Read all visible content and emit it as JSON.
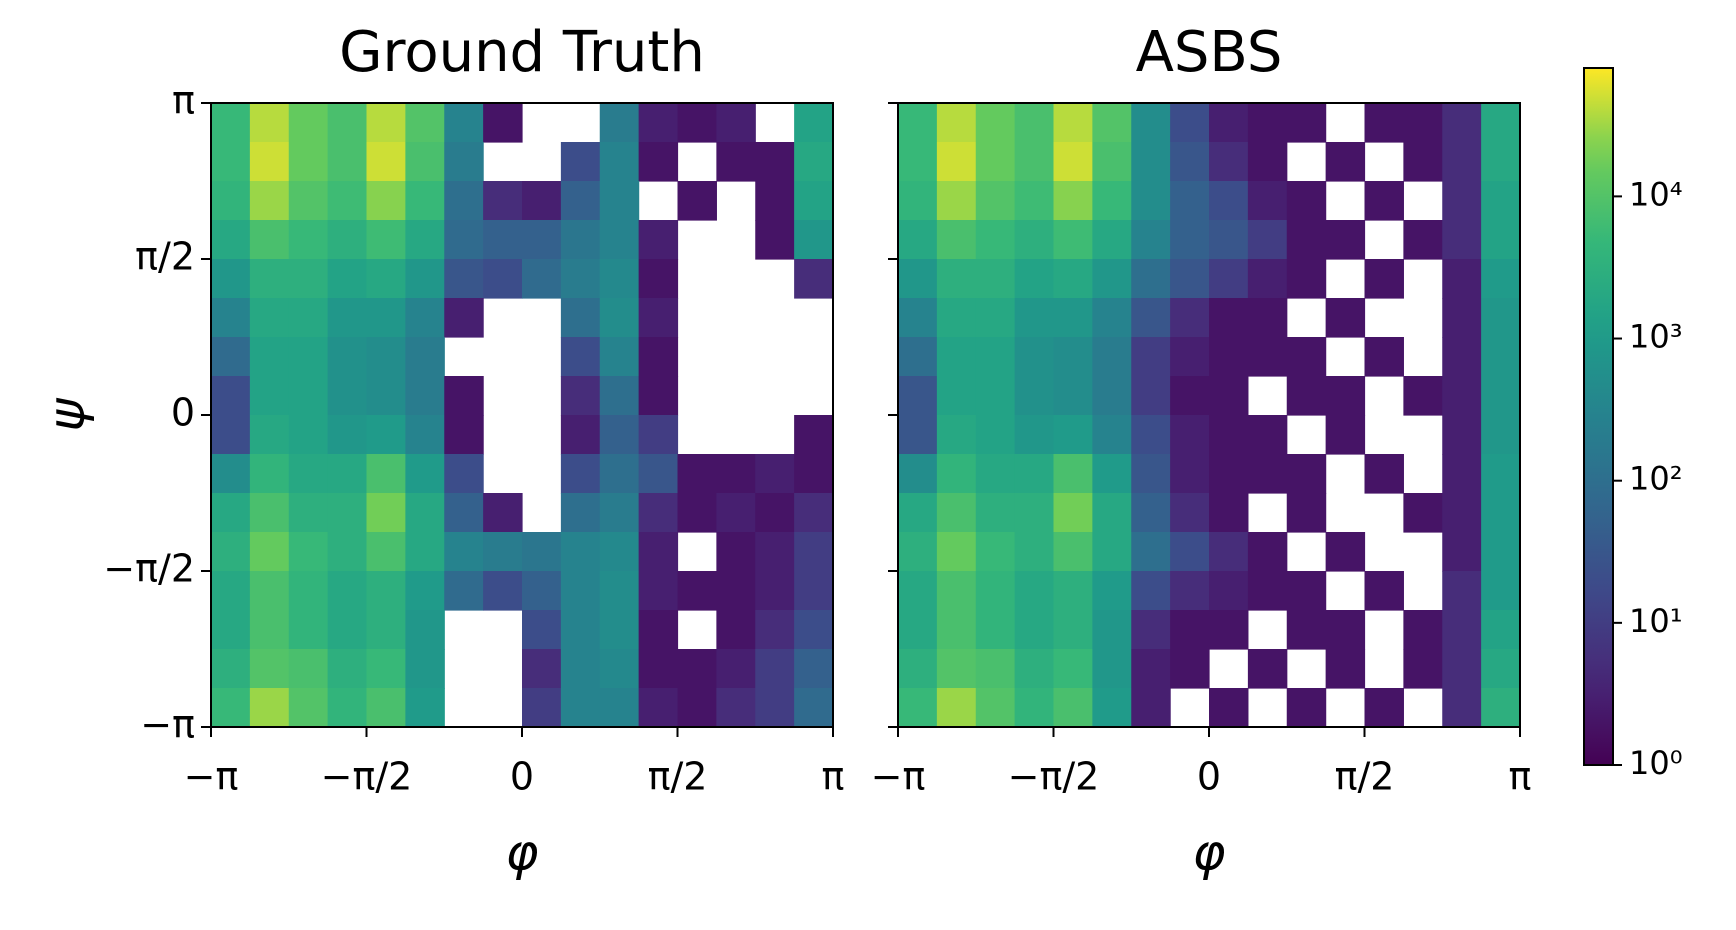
{
  "chart_data": [
    {
      "type": "heatmap",
      "title": "Ground Truth",
      "xlabel": "φ",
      "ylabel": "ψ",
      "xlim": [
        -3.14159,
        3.14159
      ],
      "ylim": [
        -3.14159,
        3.14159
      ],
      "xticks": [
        {
          "value": -3.14159,
          "label": "−π"
        },
        {
          "value": -1.5708,
          "label": "−π/2"
        },
        0,
        {
          "value": 1.5708,
          "label": "π/2"
        },
        {
          "value": 3.14159,
          "label": "π"
        }
      ],
      "yticks": [
        {
          "value": -3.14159,
          "label": "−π"
        },
        {
          "value": -1.5708,
          "label": "−π/2"
        },
        0,
        {
          "value": 1.5708,
          "label": "π/2"
        },
        {
          "value": 3.14159,
          "label": "π"
        }
      ],
      "z": [
        [
          5000,
          40000,
          15000,
          8000,
          40000,
          10000,
          300,
          2,
          null,
          null,
          200,
          3,
          2,
          3,
          null,
          1500
        ],
        [
          5000,
          50000,
          15000,
          8000,
          50000,
          8000,
          200,
          null,
          null,
          20,
          300,
          2,
          null,
          2,
          2,
          2000
        ],
        [
          4000,
          30000,
          10000,
          6000,
          25000,
          5000,
          100,
          5,
          3,
          50,
          300,
          null,
          2,
          null,
          2,
          1500
        ],
        [
          2000,
          8000,
          5000,
          3000,
          6000,
          2000,
          80,
          50,
          50,
          150,
          300,
          3,
          null,
          null,
          2,
          800
        ],
        [
          800,
          3000,
          3000,
          1500,
          2000,
          800,
          30,
          20,
          80,
          200,
          400,
          2,
          null,
          null,
          null,
          5
        ],
        [
          300,
          2000,
          2000,
          800,
          800,
          300,
          3,
          null,
          null,
          100,
          500,
          3,
          null,
          null,
          null,
          null
        ],
        [
          80,
          1500,
          1500,
          600,
          500,
          200,
          null,
          null,
          null,
          20,
          300,
          2,
          null,
          null,
          null,
          null
        ],
        [
          20,
          1500,
          1500,
          600,
          500,
          200,
          2,
          null,
          null,
          5,
          100,
          2,
          null,
          null,
          null,
          null
        ],
        [
          20,
          2000,
          1500,
          800,
          1000,
          300,
          2,
          null,
          null,
          3,
          50,
          10,
          null,
          null,
          null,
          2
        ],
        [
          500,
          4000,
          2000,
          2000,
          8000,
          1000,
          20,
          null,
          null,
          20,
          100,
          30,
          2,
          2,
          3,
          2
        ],
        [
          2000,
          8000,
          3000,
          3000,
          20000,
          2000,
          50,
          3,
          null,
          100,
          200,
          5,
          2,
          3,
          2,
          5
        ],
        [
          3000,
          15000,
          5000,
          3000,
          8000,
          2000,
          300,
          200,
          150,
          300,
          400,
          3,
          null,
          2,
          3,
          10
        ],
        [
          2000,
          8000,
          4000,
          2000,
          3000,
          1000,
          80,
          20,
          50,
          300,
          500,
          3,
          2,
          2,
          3,
          10
        ],
        [
          2000,
          8000,
          4000,
          2000,
          3000,
          800,
          null,
          null,
          20,
          300,
          500,
          2,
          null,
          2,
          5,
          20
        ],
        [
          3000,
          10000,
          8000,
          3000,
          5000,
          800,
          null,
          null,
          5,
          300,
          400,
          2,
          2,
          3,
          10,
          50
        ],
        [
          5000,
          30000,
          10000,
          4000,
          8000,
          1000,
          null,
          null,
          10,
          300,
          300,
          3,
          2,
          5,
          10,
          80
        ]
      ]
    },
    {
      "type": "heatmap",
      "title": "ASBS",
      "xlabel": "φ",
      "xlim": [
        -3.14159,
        3.14159
      ],
      "ylim": [
        -3.14159,
        3.14159
      ],
      "xticks": [
        {
          "value": -3.14159,
          "label": "−π"
        },
        {
          "value": -1.5708,
          "label": "−π/2"
        },
        0,
        {
          "value": 1.5708,
          "label": "π/2"
        },
        {
          "value": 3.14159,
          "label": "π"
        }
      ],
      "ytick_marks": [
        -3.14159,
        -1.5708,
        0,
        1.5708,
        3.14159
      ],
      "z": [
        [
          5000,
          40000,
          15000,
          8000,
          40000,
          10000,
          500,
          20,
          3,
          2,
          2,
          null,
          2,
          2,
          5,
          2000
        ],
        [
          5000,
          50000,
          15000,
          8000,
          50000,
          8000,
          500,
          30,
          5,
          2,
          null,
          2,
          null,
          2,
          5,
          2000
        ],
        [
          4000,
          30000,
          10000,
          6000,
          25000,
          5000,
          500,
          50,
          20,
          3,
          2,
          null,
          2,
          null,
          5,
          1500
        ],
        [
          2000,
          8000,
          5000,
          3000,
          6000,
          2000,
          300,
          50,
          30,
          10,
          2,
          2,
          null,
          2,
          5,
          1500
        ],
        [
          800,
          3000,
          3000,
          1500,
          2000,
          800,
          100,
          30,
          10,
          3,
          2,
          null,
          2,
          null,
          3,
          1000
        ],
        [
          300,
          2000,
          2000,
          800,
          800,
          300,
          30,
          5,
          2,
          2,
          null,
          2,
          null,
          null,
          3,
          800
        ],
        [
          100,
          1500,
          1500,
          600,
          500,
          200,
          10,
          3,
          2,
          2,
          2,
          null,
          2,
          null,
          3,
          800
        ],
        [
          30,
          1500,
          1500,
          600,
          500,
          200,
          10,
          2,
          2,
          null,
          2,
          2,
          null,
          2,
          3,
          800
        ],
        [
          30,
          2000,
          1500,
          800,
          1000,
          300,
          20,
          3,
          2,
          2,
          null,
          2,
          null,
          null,
          3,
          800
        ],
        [
          500,
          4000,
          2000,
          2000,
          8000,
          1000,
          30,
          3,
          2,
          2,
          2,
          null,
          2,
          null,
          3,
          1000
        ],
        [
          2000,
          8000,
          3000,
          3000,
          20000,
          2000,
          50,
          5,
          2,
          null,
          2,
          null,
          null,
          2,
          3,
          1000
        ],
        [
          3000,
          15000,
          5000,
          3000,
          8000,
          2000,
          100,
          20,
          5,
          2,
          null,
          2,
          null,
          null,
          3,
          1000
        ],
        [
          2000,
          8000,
          4000,
          2000,
          3000,
          1000,
          20,
          5,
          3,
          2,
          2,
          null,
          2,
          null,
          5,
          1000
        ],
        [
          2000,
          8000,
          4000,
          2000,
          3000,
          800,
          5,
          2,
          2,
          null,
          2,
          2,
          null,
          2,
          5,
          1500
        ],
        [
          3000,
          10000,
          8000,
          3000,
          5000,
          800,
          3,
          2,
          null,
          2,
          null,
          2,
          null,
          2,
          5,
          2000
        ],
        [
          5000,
          30000,
          10000,
          4000,
          8000,
          1000,
          3,
          null,
          2,
          null,
          2,
          null,
          2,
          null,
          5,
          3000
        ]
      ]
    },
    {
      "type": "colorbar",
      "scale": "log",
      "colormap": "viridis",
      "clim": [
        1,
        80000
      ],
      "ticks": [
        {
          "value": 1,
          "label": "10⁰"
        },
        {
          "value": 10,
          "label": "10¹"
        },
        {
          "value": 100,
          "label": "10²"
        },
        {
          "value": 1000,
          "label": "10³"
        },
        {
          "value": 10000,
          "label": "10⁴"
        }
      ]
    }
  ]
}
